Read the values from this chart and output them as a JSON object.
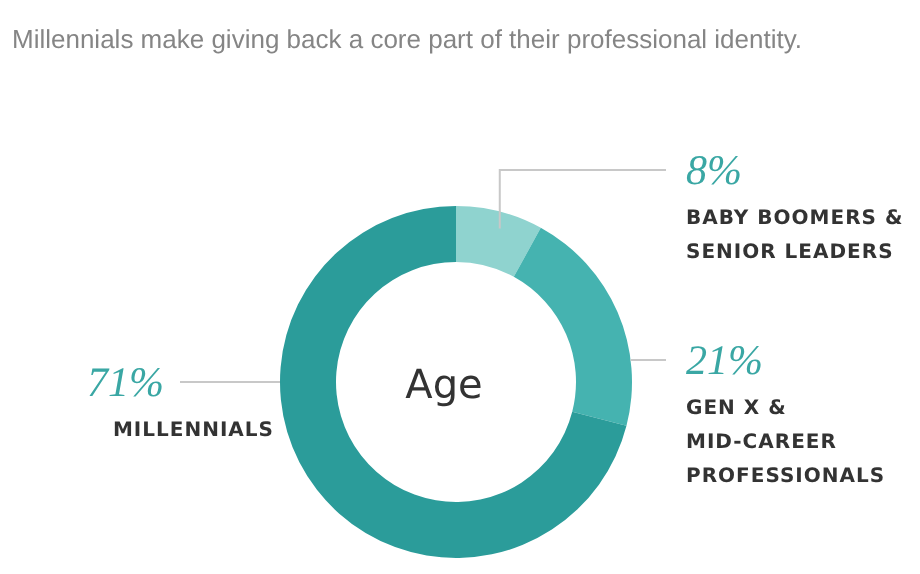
{
  "chart_data": {
    "type": "donut",
    "title": "Millennials make giving back a core part of their professional identity.",
    "annotations": [
      "Age"
    ],
    "categories": [
      "BABY BOOMERS & SENIOR LEADERS",
      "GEN X & MID-CAREER PROFESSIONALS",
      "MILLENNIALS"
    ],
    "values": [
      8,
      21,
      71
    ],
    "value_labels": [
      "8%",
      "21%",
      "71%"
    ],
    "colors": [
      "#8fd3cf",
      "#45b3b0",
      "#2b9c9a"
    ]
  }
}
